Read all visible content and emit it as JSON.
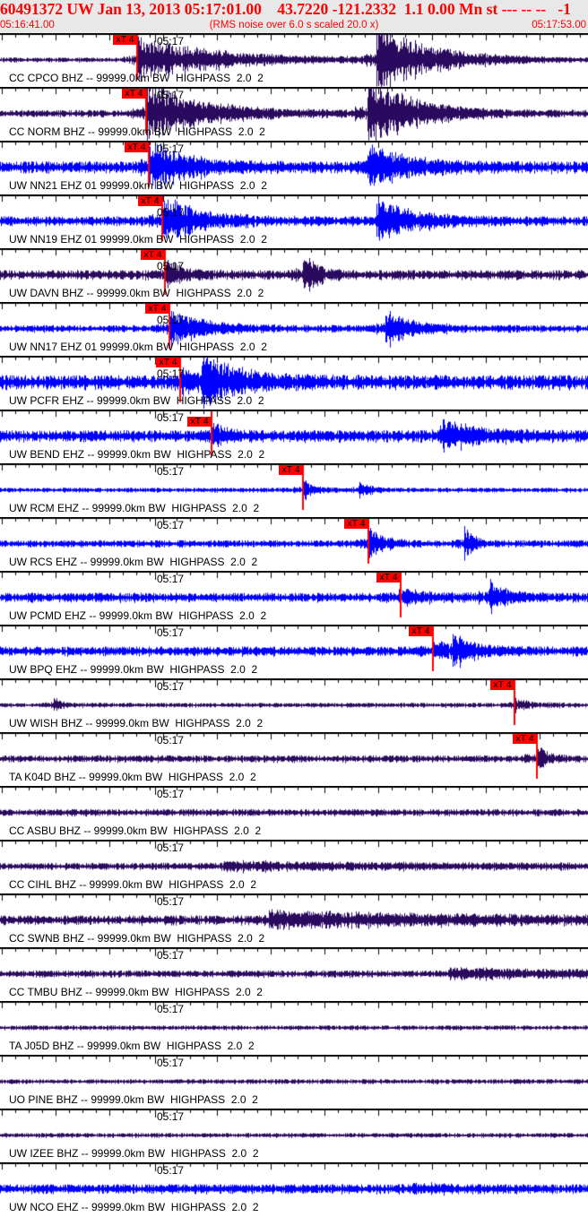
{
  "header": {
    "title": "60491372 UW Jan 13, 2013 05:17:01.00    43.7220 -121.2332  1.1 0.00 Mn st --- -- --   -1",
    "start_time": "05:16:41.00",
    "end_time": "05:17:53.00",
    "note": "(RMS noise over 6.0 s scaled 20.0 x)"
  },
  "minute_label": "05:17",
  "pick_label": "xT 4",
  "colors": {
    "header_text": "#ff0000",
    "pick": "#ff0000",
    "broadband_trace": "#2a0a5e",
    "short_period_trace": "#0000ff",
    "header_bg": "#e8e8e8"
  },
  "traces": [
    {
      "label": "CC CPCO BHZ -- 99999.0km BW  HIGHPASS  2.0  2",
      "type": "broadband",
      "pick": "05:16:57.7"
    },
    {
      "label": "CC NORM BHZ -- 99999.0km BW  HIGHPASS  2.0  2",
      "type": "broadband",
      "pick": "05:16:58.8"
    },
    {
      "label": "UW NN21 EHZ 01 99999.0km BW  HIGHPASS  2.0  2",
      "type": "short_period",
      "pick": "05:16:59.1"
    },
    {
      "label": "UW NN19 EHZ 01 99999.0km BW  HIGHPASS  2.0  2",
      "type": "short_period",
      "pick": "05:17:00.8"
    },
    {
      "label": "UW DAVN BHZ -- 99999.0km BW  HIGHPASS  2.0  2",
      "type": "broadband",
      "pick": "05:17:01.1"
    },
    {
      "label": "UW NN17 EHZ 01 99999.0km BW  HIGHPASS  2.0  2",
      "type": "short_period",
      "pick": "05:17:01.6"
    },
    {
      "label": "UW PCFR EHZ -- 99999.0km BW  HIGHPASS  2.0  2",
      "type": "short_period",
      "pick": "05:17:03.0"
    },
    {
      "label": "UW BEND EHZ -- 99999.0km BW  HIGHPASS  2.0  2",
      "type": "short_period",
      "pick": "05:17:06.8"
    },
    {
      "label": "UW RCM EHZ -- 99999.0km BW  HIGHPASS  2.0  2",
      "type": "short_period",
      "pick": "05:17:18.0"
    },
    {
      "label": "UW RCS EHZ -- 99999.0km BW  HIGHPASS  2.0  2",
      "type": "short_period",
      "pick": "05:17:26.0"
    },
    {
      "label": "UW PCMD EHZ -- 99999.0km BW  HIGHPASS  2.0  2",
      "type": "short_period",
      "pick": "05:17:29.9"
    },
    {
      "label": "UW BPQ EHZ -- 99999.0km BW  HIGHPASS  2.0  2",
      "type": "short_period",
      "pick": "05:17:33.9"
    },
    {
      "label": "UW WISH BHZ -- 99999.0km BW  HIGHPASS  2.0  2",
      "type": "broadband",
      "pick": "05:17:43.9"
    },
    {
      "label": "TA K04D BHZ -- 99999.0km BW  HIGHPASS  2.0  2",
      "type": "broadband",
      "pick": "05:17:46.6"
    },
    {
      "label": "CC ASBU BHZ -- 99999.0km BW  HIGHPASS  2.0  2",
      "type": "broadband"
    },
    {
      "label": "CC CIHL BHZ -- 99999.0km BW  HIGHPASS  2.0  2",
      "type": "broadband"
    },
    {
      "label": "CC SWNB BHZ -- 99999.0km BW  HIGHPASS  2.0  2",
      "type": "broadband"
    },
    {
      "label": "CC TMBU BHZ -- 99999.0km BW  HIGHPASS  2.0  2",
      "type": "broadband"
    },
    {
      "label": "TA J05D BHZ -- 99999.0km BW  HIGHPASS  2.0  2",
      "type": "broadband"
    },
    {
      "label": "UO PINE BHZ -- 99999.0km BW  HIGHPASS  2.0  2",
      "type": "broadband"
    },
    {
      "label": "UW IZEE BHZ -- 99999.0km BW  HIGHPASS  2.0  2",
      "type": "broadband"
    },
    {
      "label": "UW NCO EHZ -- 99999.0km BW  HIGHPASS  2.0  2",
      "type": "short_period"
    }
  ]
}
